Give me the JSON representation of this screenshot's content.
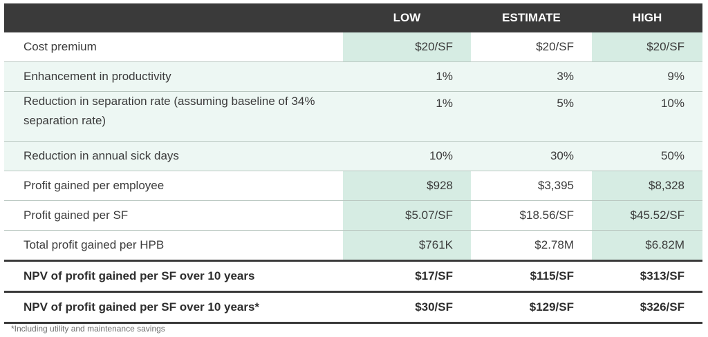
{
  "header": {
    "col0": "",
    "col1": "LOW",
    "col2": "ESTIMATE",
    "col3": "HIGH"
  },
  "rows": [
    {
      "label": "Cost premium",
      "low": "$20/SF",
      "estimate": "$20/SF",
      "high": "$20/SF"
    },
    {
      "label": "Enhancement in productivity",
      "low": "1%",
      "estimate": "3%",
      "high": "9%"
    },
    {
      "label": "Reduction in separation rate (assuming baseline of 34% separation rate)",
      "low": "1%",
      "estimate": "5%",
      "high": "10%"
    },
    {
      "label": "Reduction in annual sick days",
      "low": "10%",
      "estimate": "30%",
      "high": "50%"
    },
    {
      "label": "Profit gained per employee",
      "low": "$928",
      "estimate": "$3,395",
      "high": "$8,328"
    },
    {
      "label": "Profit gained per SF",
      "low": "$5.07/SF",
      "estimate": "$18.56/SF",
      "high": "$45.52/SF"
    },
    {
      "label": "Total profit gained per HPB",
      "low": "$761K",
      "estimate": "$2.78M",
      "high": "$6.82M"
    },
    {
      "label": "NPV of profit gained per SF over 10 years",
      "low": "$17/SF",
      "estimate": "$115/SF",
      "high": "$313/SF"
    },
    {
      "label": "NPV of profit gained per SF over 10 years*",
      "low": "$30/SF",
      "estimate": "$129/SF",
      "high": "$326/SF"
    }
  ],
  "footnote": "*Including utility and maintenance savings",
  "colors": {
    "header_bg": "#3a3a3a",
    "highlight": "#d6ece3",
    "mint_row": "#edf7f3",
    "text": "#3b3b3b"
  }
}
